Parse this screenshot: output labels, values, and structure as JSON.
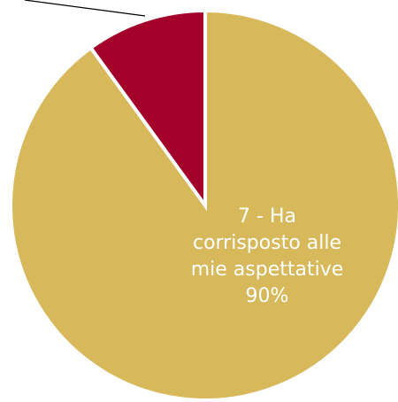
{
  "chart_data": {
    "type": "pie",
    "slices": [
      {
        "value": 90,
        "color": "#D7B85A",
        "label_lines": [
          "7 - Ha",
          "corrisposto alle",
          "mie aspettative",
          "90%"
        ]
      },
      {
        "value": 10,
        "color": "#A3002A",
        "label_lines": []
      }
    ],
    "start_angle_deg": 0,
    "direction": "clockwise",
    "separator_color": "#FFFFFF",
    "leader_line": true
  }
}
